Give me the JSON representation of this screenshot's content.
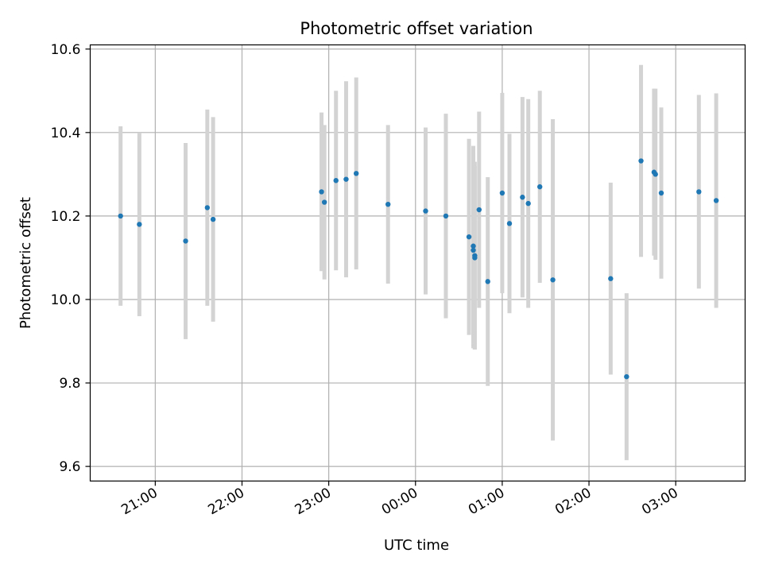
{
  "chart_data": {
    "type": "scatter",
    "title": "Photometric offset variation",
    "xlabel": "UTC time",
    "ylabel": "Photometric offset",
    "x_tick_labels": [
      "21:00",
      "22:00",
      "23:00",
      "00:00",
      "01:00",
      "02:00",
      "03:00"
    ],
    "y_tick_labels": [
      "9.6",
      "9.8",
      "10.0",
      "10.2",
      "10.4",
      "10.6"
    ],
    "xlim": [
      "20:15",
      "03:48"
    ],
    "ylim": [
      9.565,
      10.61
    ],
    "grid": true,
    "colors": {
      "point": "#1f77b4",
      "errorbar": "#d3d3d3",
      "grid": "#b0b0b0"
    },
    "points": [
      {
        "x": "20:36",
        "y": 10.2,
        "err": 0.215
      },
      {
        "x": "20:49",
        "y": 10.18,
        "err": 0.22
      },
      {
        "x": "21:21",
        "y": 10.14,
        "err": 0.235
      },
      {
        "x": "21:36",
        "y": 10.22,
        "err": 0.235
      },
      {
        "x": "21:40",
        "y": 10.192,
        "err": 0.245
      },
      {
        "x": "22:55",
        "y": 10.258,
        "err": 0.19
      },
      {
        "x": "22:57",
        "y": 10.233,
        "err": 0.185
      },
      {
        "x": "23:05",
        "y": 10.285,
        "err": 0.215
      },
      {
        "x": "23:12",
        "y": 10.288,
        "err": 0.235
      },
      {
        "x": "23:19",
        "y": 10.302,
        "err": 0.23
      },
      {
        "x": "23:41",
        "y": 10.228,
        "err": 0.19
      },
      {
        "x": "00:07",
        "y": 10.212,
        "err": 0.2
      },
      {
        "x": "00:21",
        "y": 10.2,
        "err": 0.245
      },
      {
        "x": "00:37",
        "y": 10.15,
        "err": 0.235
      },
      {
        "x": "00:40",
        "y": 10.128,
        "err": 0.24
      },
      {
        "x": "00:40",
        "y": 10.118,
        "err": 0.235
      },
      {
        "x": "00:41",
        "y": 10.105,
        "err": 0.225
      },
      {
        "x": "00:41",
        "y": 10.1,
        "err": 0.22
      },
      {
        "x": "00:44",
        "y": 10.215,
        "err": 0.235
      },
      {
        "x": "00:50",
        "y": 10.043,
        "err": 0.25
      },
      {
        "x": "01:00",
        "y": 10.255,
        "err": 0.24
      },
      {
        "x": "01:05",
        "y": 10.182,
        "err": 0.215
      },
      {
        "x": "01:14",
        "y": 10.245,
        "err": 0.24
      },
      {
        "x": "01:18",
        "y": 10.23,
        "err": 0.25
      },
      {
        "x": "01:26",
        "y": 10.27,
        "err": 0.23
      },
      {
        "x": "01:35",
        "y": 10.047,
        "err": 0.385
      },
      {
        "x": "02:15",
        "y": 10.05,
        "err": 0.23
      },
      {
        "x": "02:26",
        "y": 9.815,
        "err": 0.2
      },
      {
        "x": "02:36",
        "y": 10.332,
        "err": 0.23
      },
      {
        "x": "02:45",
        "y": 10.305,
        "err": 0.2
      },
      {
        "x": "02:46",
        "y": 10.3,
        "err": 0.205
      },
      {
        "x": "02:50",
        "y": 10.255,
        "err": 0.205
      },
      {
        "x": "03:16",
        "y": 10.258,
        "err": 0.232
      },
      {
        "x": "03:28",
        "y": 10.237,
        "err": 0.257
      }
    ]
  }
}
